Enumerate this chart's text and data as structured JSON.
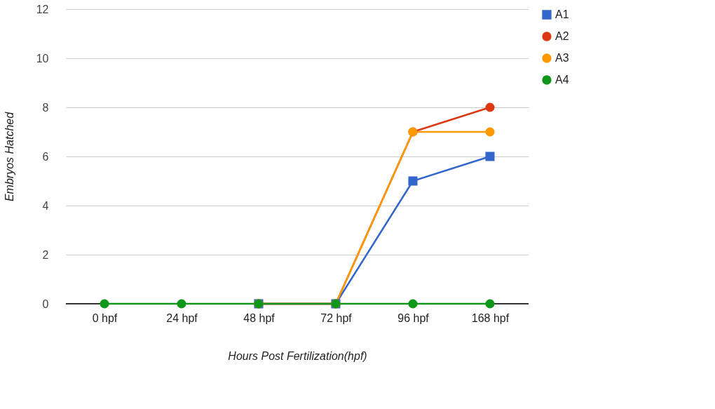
{
  "chart_data": {
    "type": "line",
    "xlabel": "Hours Post Fertilization(hpf)",
    "ylabel": "Embryos Hatched",
    "categories": [
      "0 hpf",
      "24 hpf",
      "48 hpf",
      "72 hpf",
      "96 hpf",
      "168 hpf"
    ],
    "series": [
      {
        "name": "A1",
        "color": "#3366cc",
        "marker": "square",
        "values": [
          null,
          null,
          0,
          0,
          5,
          6
        ]
      },
      {
        "name": "A2",
        "color": "#dc3912",
        "marker": "circle",
        "values": [
          null,
          null,
          0,
          0,
          7,
          8
        ]
      },
      {
        "name": "A3",
        "color": "#ff9900",
        "marker": "circle",
        "values": [
          null,
          null,
          0,
          0,
          7,
          7
        ]
      },
      {
        "name": "A4",
        "color": "#109618",
        "marker": "circle",
        "values": [
          0,
          0,
          0,
          0,
          0,
          0
        ]
      }
    ],
    "ylim": [
      0,
      12
    ],
    "yticks": [
      0,
      2,
      4,
      6,
      8,
      10,
      12
    ],
    "grid": "y",
    "legend": "top right",
    "line_style": "solid"
  }
}
